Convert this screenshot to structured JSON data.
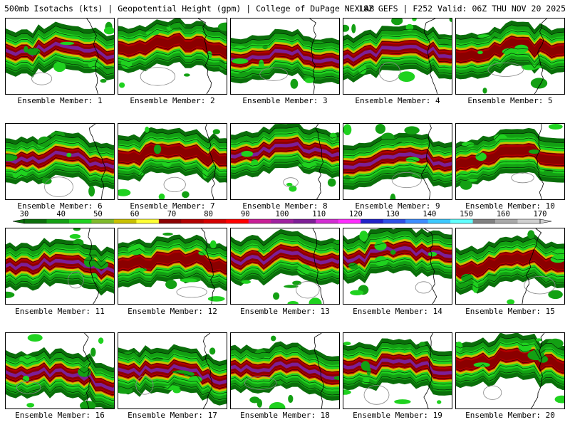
{
  "header": {
    "left": "500mb Isotachs (kts) | Geopotential Height (gpm) | College of DuPage NEXLAB",
    "right": "18Z GEFS | F252 Valid: 06Z THU NOV 20 2025"
  },
  "colorbar": {
    "labels": [
      "30",
      "40",
      "50",
      "60",
      "70",
      "80",
      "90",
      "100",
      "110",
      "120",
      "130",
      "140",
      "150",
      "160",
      "170"
    ],
    "colors": [
      "#0a6e0a",
      "#13a013",
      "#1fd21f",
      "#7fba2a",
      "#c8c000",
      "#ffff33",
      "#8b0000",
      "#b30000",
      "#d40000",
      "#ff0000",
      "#c81e96",
      "#a020a0",
      "#7d1e96",
      "#d22dd2",
      "#ff2dff",
      "#2020c8",
      "#2e50e6",
      "#3c8cff",
      "#3cc8ff",
      "#60ffff",
      "#808080",
      "#a8a8a8",
      "#cfcfcf"
    ]
  },
  "members": [
    {
      "label": "Ensemble Member: 1"
    },
    {
      "label": "Ensemble Member: 2"
    },
    {
      "label": "Ensemble Member: 3"
    },
    {
      "label": "Ensemble Member: 4"
    },
    {
      "label": "Ensemble Member: 5"
    },
    {
      "label": "Ensemble Member: 6"
    },
    {
      "label": "Ensemble Member: 7"
    },
    {
      "label": "Ensemble Member: 8"
    },
    {
      "label": "Ensemble Member: 9"
    },
    {
      "label": "Ensemble Member: 10"
    },
    {
      "label": "Ensemble Member: 11"
    },
    {
      "label": "Ensemble Member: 12"
    },
    {
      "label": "Ensemble Member: 13"
    },
    {
      "label": "Ensemble Member: 14"
    },
    {
      "label": "Ensemble Member: 15"
    },
    {
      "label": "Ensemble Member: 16"
    },
    {
      "label": "Ensemble Member: 17"
    },
    {
      "label": "Ensemble Member: 18"
    },
    {
      "label": "Ensemble Member: 19"
    },
    {
      "label": "Ensemble Member: 20"
    }
  ]
}
